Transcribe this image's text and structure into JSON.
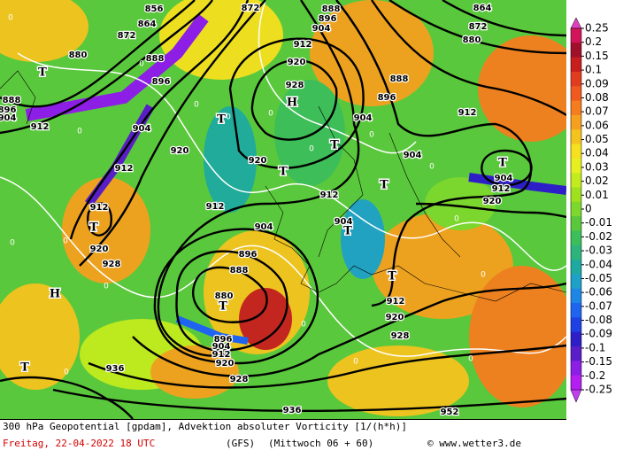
{
  "map": {
    "contour_labels": [
      "856",
      "864",
      "872",
      "880",
      "888",
      "896",
      "904",
      "912",
      "920",
      "912",
      "920",
      "928",
      "872",
      "888",
      "896",
      "904",
      "912",
      "920",
      "928",
      "896",
      "888",
      "904",
      "912",
      "904",
      "912",
      "912",
      "904",
      "904",
      "896",
      "888",
      "880",
      "896",
      "904",
      "912",
      "920",
      "928",
      "936",
      "936",
      "952",
      "920",
      "920",
      "928",
      "912",
      "920",
      "912",
      "904",
      "864",
      "872",
      "880",
      "888",
      "896",
      "904",
      "912"
    ],
    "centers": [
      "H",
      "T",
      "T",
      "T",
      "T",
      "T",
      "T",
      "T",
      "T",
      "T",
      "H",
      "T",
      "T"
    ],
    "zero_labels": [
      "0",
      "0",
      "0",
      "0",
      "0",
      "0",
      "0",
      "0",
      "0",
      "0",
      "0",
      "0",
      "0",
      "0",
      "0",
      "0",
      "0",
      "0"
    ],
    "colorbar": {
      "labels": [
        0.25,
        0.2,
        0.15,
        0.1,
        0.09,
        0.08,
        0.07,
        0.06,
        0.05,
        0.04,
        0.03,
        0.02,
        0.01,
        0,
        -0.01,
        -0.02,
        -0.03,
        -0.04,
        -0.05,
        -0.06,
        -0.07,
        -0.08,
        -0.09,
        -0.1,
        -0.15,
        -0.2,
        -0.25
      ],
      "colors": [
        "#d4145a",
        "#a0102a",
        "#c81e1e",
        "#e23c1e",
        "#f05a1e",
        "#f57d1e",
        "#f5a01e",
        "#f5c31e",
        "#f5e11e",
        "#e6f01e",
        "#c3eb1e",
        "#a0e11e",
        "#7dd72d",
        "#5ac83c",
        "#3cbe5a",
        "#2db47d",
        "#1eaaa0",
        "#1ea0c8",
        "#1e87e6",
        "#1e64f0",
        "#1e41e6",
        "#2d1ec8",
        "#5a1ec8",
        "#8c1ee6",
        "#b41ef0"
      ]
    },
    "footer": {
      "line1": "300 hPa Geopotential [gpdam], Advektion absoluter Vorticity [1/(h*h)]",
      "date": "Freitag, 22-04-2022  18 UTC",
      "model": "(GFS)",
      "run": "(Mittwoch 06 + 60)",
      "credit": "© www.wetter3.de"
    }
  }
}
